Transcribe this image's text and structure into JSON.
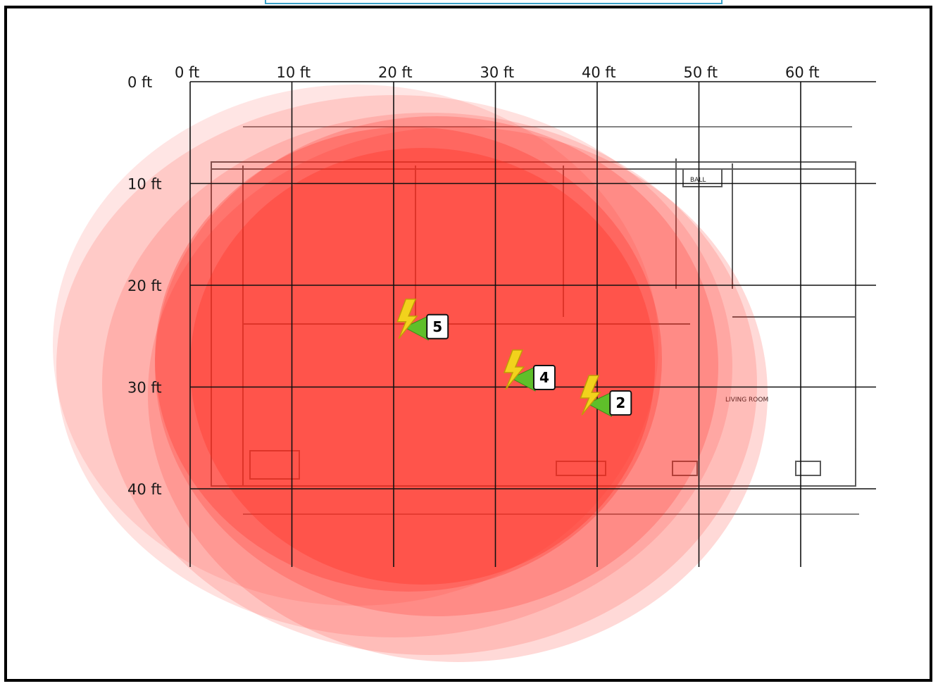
{
  "map": {
    "x_labels": [
      "0 ft",
      "10 ft",
      "20 ft",
      "30 ft",
      "40 ft",
      "50 ft",
      "60 ft"
    ],
    "y_labels": [
      "0 ft",
      "10 ft",
      "20 ft",
      "30 ft",
      "40 ft"
    ],
    "room_labels": [
      "BALL",
      "LIVING ROOM"
    ],
    "heat_color": "#ff2a1f",
    "grid_color": "#111111"
  },
  "access_points": [
    {
      "id": "5",
      "x_ft": 20.5,
      "y_ft": 24
    },
    {
      "id": "4",
      "x_ft": 31,
      "y_ft": 29
    },
    {
      "id": "2",
      "x_ft": 38.5,
      "y_ft": 31.5
    }
  ]
}
